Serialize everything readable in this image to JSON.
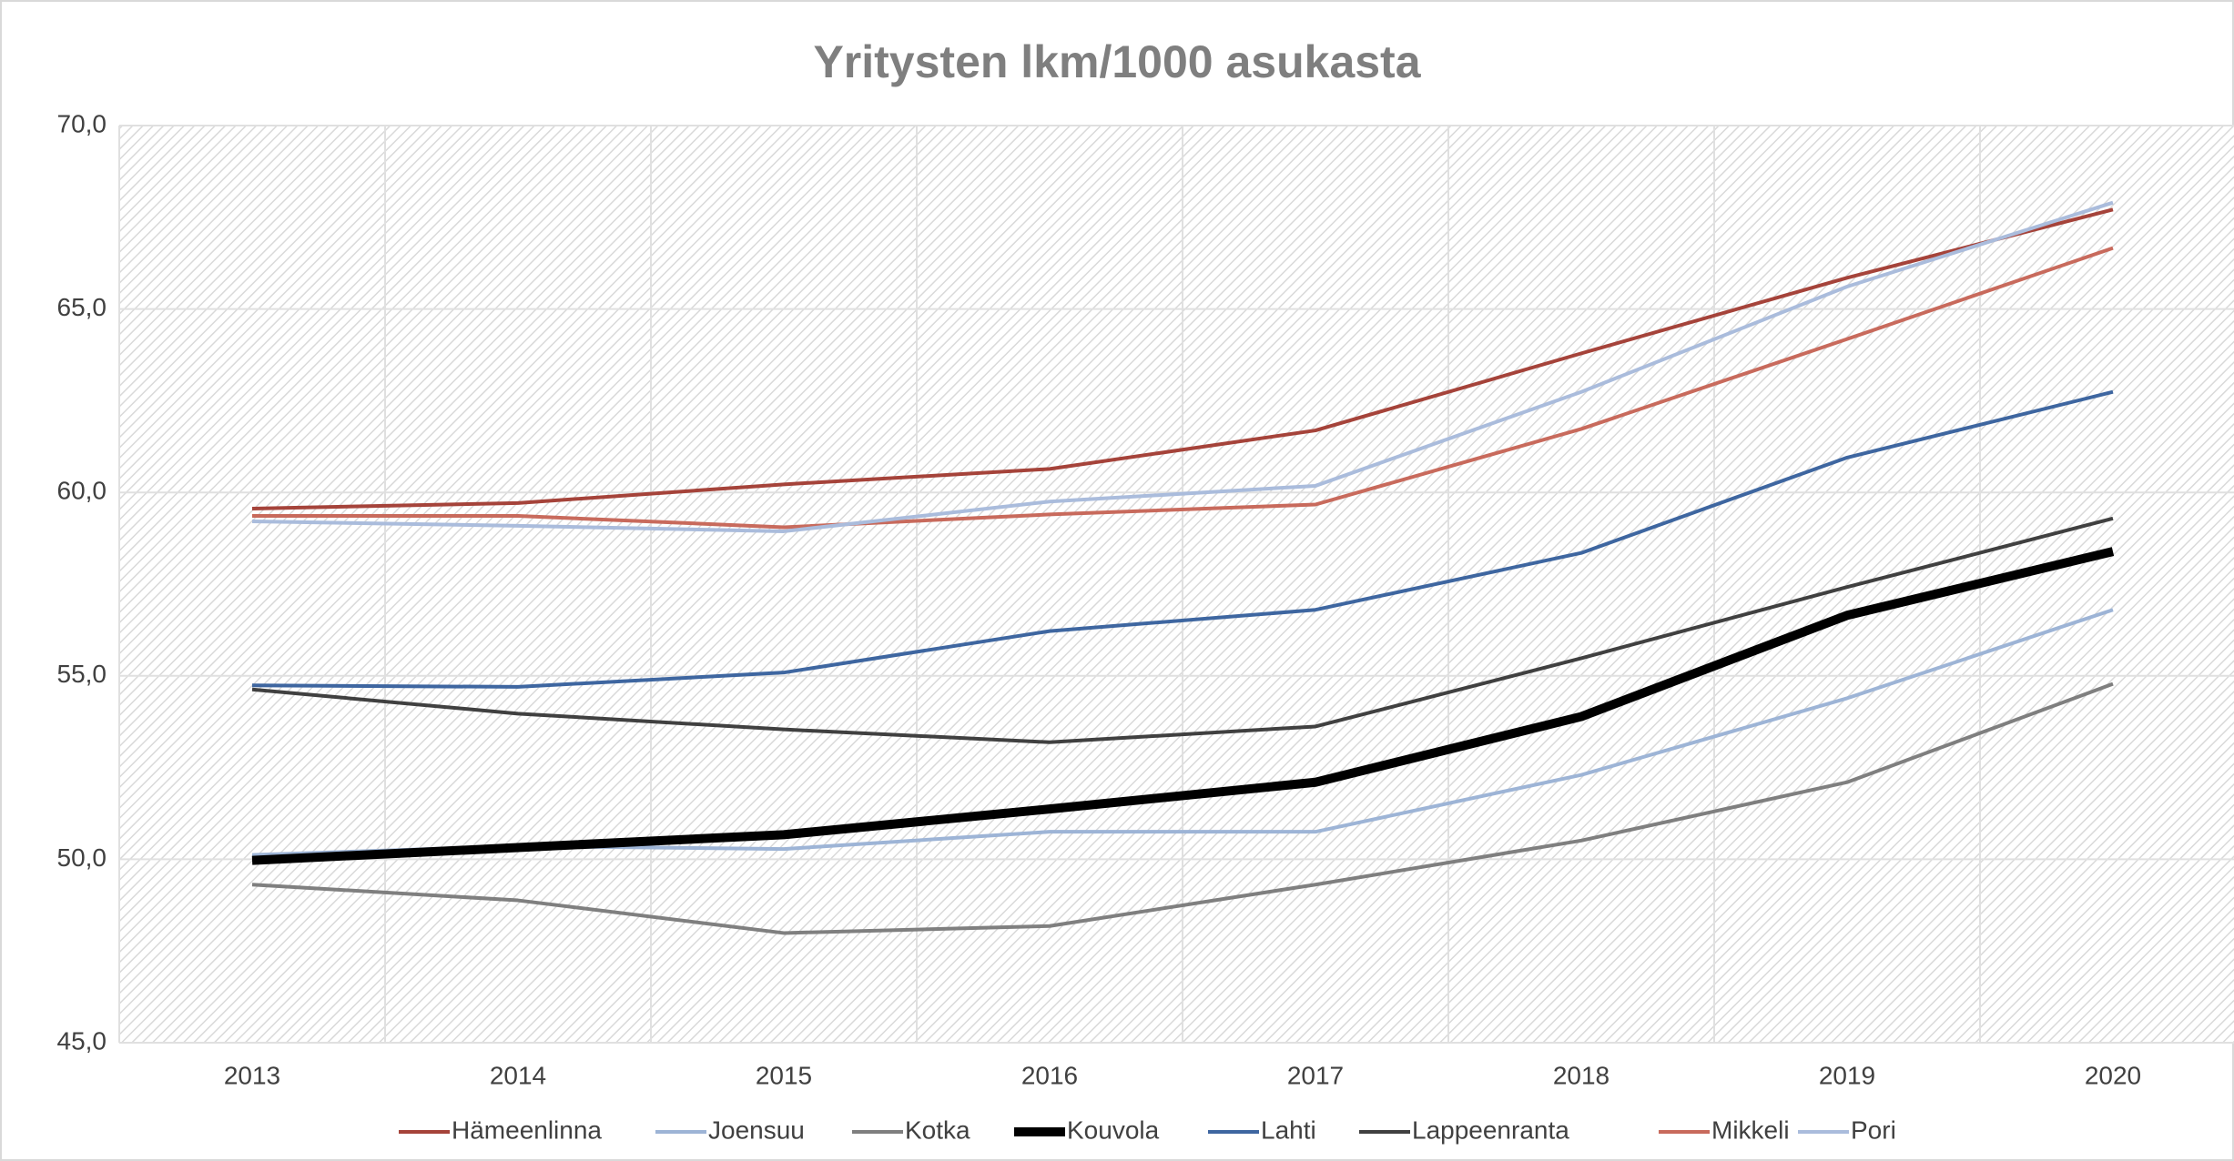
{
  "chart_data": {
    "type": "line",
    "title": "Yritysten lkm/1000 asukasta",
    "categories": [
      "2013",
      "2014",
      "2015",
      "2016",
      "2017",
      "2018",
      "2019",
      "2020"
    ],
    "series": [
      {
        "name": "Hämeenlinna",
        "color": "#a5433a",
        "values": [
          59.56,
          59.71,
          60.22,
          60.64,
          61.69,
          63.79,
          65.85,
          67.71
        ]
      },
      {
        "name": "Joensuu",
        "color": "#9db4d6",
        "values": [
          50.12,
          50.36,
          50.28,
          50.75,
          50.75,
          52.3,
          54.39,
          56.8
        ]
      },
      {
        "name": "Kotka",
        "color": "#7f7f7f",
        "values": [
          49.31,
          48.88,
          47.99,
          48.18,
          49.31,
          50.51,
          52.1,
          54.78
        ]
      },
      {
        "name": "Kouvola",
        "color": "#000000",
        "values": [
          49.97,
          50.32,
          50.67,
          51.37,
          52.1,
          53.89,
          56.65,
          58.39
        ]
      },
      {
        "name": "Lahti",
        "color": "#3e66a0",
        "values": [
          54.74,
          54.7,
          55.09,
          56.22,
          56.8,
          58.35,
          60.95,
          62.74
        ]
      },
      {
        "name": "Lappeenranta",
        "color": "#404040",
        "values": [
          54.63,
          53.97,
          53.54,
          53.19,
          53.62,
          55.48,
          57.42,
          59.29
        ]
      },
      {
        "name": "Mikkeli",
        "color": "#c86a5c",
        "values": [
          59.36,
          59.36,
          59.05,
          59.4,
          59.67,
          61.73,
          64.18,
          66.66
        ]
      },
      {
        "name": "Pori",
        "color": "#aabcdc",
        "values": [
          59.21,
          59.09,
          58.94,
          59.75,
          60.18,
          62.74,
          65.61,
          67.9
        ]
      }
    ],
    "ylim": [
      45,
      70
    ],
    "yticks": [
      {
        "value": 45,
        "label": "45,0"
      },
      {
        "value": 50,
        "label": "50,0"
      },
      {
        "value": 55,
        "label": "55,0"
      },
      {
        "value": 60,
        "label": "60,0"
      },
      {
        "value": 65,
        "label": "65,0"
      },
      {
        "value": 70,
        "label": "70,0"
      }
    ],
    "grid": true,
    "legend": "bottom"
  }
}
